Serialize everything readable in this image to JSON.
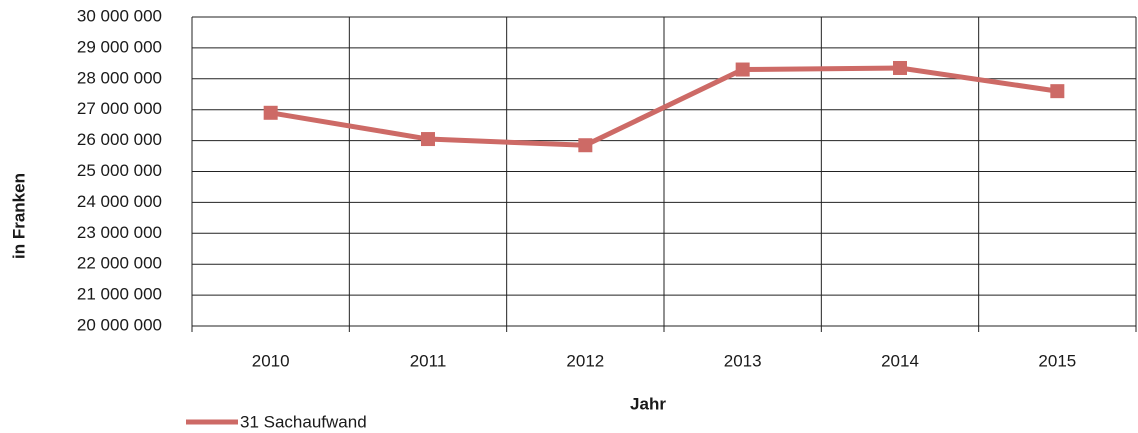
{
  "chart_data": {
    "type": "line",
    "categories": [
      "2010",
      "2011",
      "2012",
      "2013",
      "2014",
      "2015"
    ],
    "series": [
      {
        "name": "31 Sachaufwand",
        "color": "#cd6a66",
        "values": [
          26900000,
          26050000,
          25850000,
          28300000,
          28350000,
          27600000
        ]
      }
    ],
    "ylim": [
      20000000,
      30000000
    ],
    "yticks": [
      {
        "value": 20000000,
        "label": "20 000 000"
      },
      {
        "value": 21000000,
        "label": "21 000 000"
      },
      {
        "value": 22000000,
        "label": "22 000 000"
      },
      {
        "value": 23000000,
        "label": "23 000 000"
      },
      {
        "value": 24000000,
        "label": "24 000 000"
      },
      {
        "value": 25000000,
        "label": "25 000 000"
      },
      {
        "value": 26000000,
        "label": "26 000 000"
      },
      {
        "value": 27000000,
        "label": "27 000 000"
      },
      {
        "value": 28000000,
        "label": "28 000 000"
      },
      {
        "value": 29000000,
        "label": "29 000 000"
      },
      {
        "value": 30000000,
        "label": "30 000 000"
      }
    ],
    "ylabel": "in Franken",
    "xlabel": "Jahr",
    "grid": true,
    "legend": "bottom-left"
  }
}
